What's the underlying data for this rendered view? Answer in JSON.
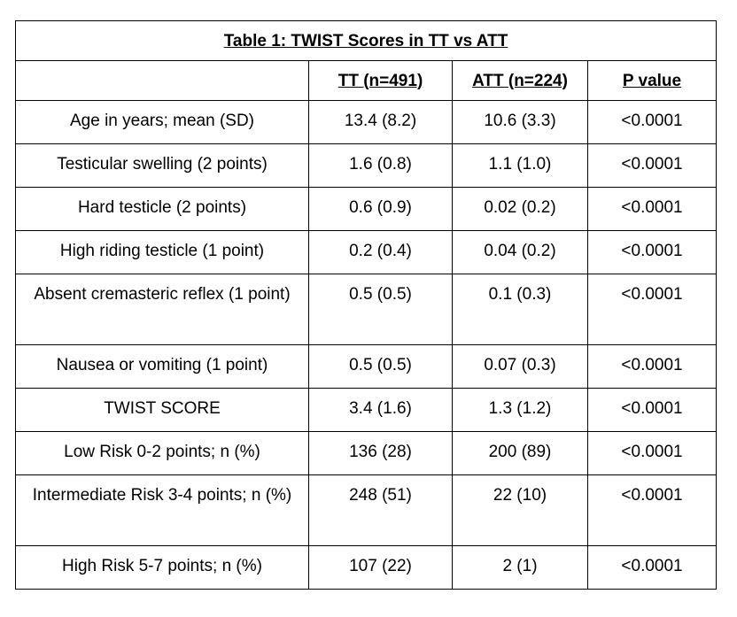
{
  "table": {
    "title": "Table 1: TWIST Scores in TT vs ATT",
    "headers": [
      "",
      "TT (n=491)",
      "ATT (n=224)",
      "P value"
    ],
    "rows": [
      {
        "label": "Age in years; mean (SD)",
        "tt": "13.4 (8.2)",
        "att": "10.6 (3.3)",
        "p": "<0.0001"
      },
      {
        "label": "Testicular swelling (2 points)",
        "tt": "1.6 (0.8)",
        "att": "1.1 (1.0)",
        "p": "<0.0001"
      },
      {
        "label": "Hard testicle (2 points)",
        "tt": "0.6 (0.9)",
        "att": "0.02 (0.2)",
        "p": "<0.0001"
      },
      {
        "label": "High riding testicle (1 point)",
        "tt": "0.2 (0.4)",
        "att": "0.04 (0.2)",
        "p": "<0.0001"
      },
      {
        "label": "Absent cremasteric reflex (1 point)",
        "tt": "0.5 (0.5)",
        "att": "0.1 (0.3)",
        "p": "<0.0001"
      },
      {
        "label": "Nausea or vomiting (1 point)",
        "tt": "0.5 (0.5)",
        "att": "0.07 (0.3)",
        "p": "<0.0001"
      },
      {
        "label": "TWIST SCORE",
        "tt": "3.4 (1.6)",
        "att": "1.3 (1.2)",
        "p": "<0.0001"
      },
      {
        "label": "Low Risk 0-2 points; n (%)",
        "tt": "136 (28)",
        "att": "200 (89)",
        "p": "<0.0001"
      },
      {
        "label": "Intermediate Risk 3-4 points; n (%)",
        "tt": "248 (51)",
        "att": "22 (10)",
        "p": "<0.0001"
      },
      {
        "label": "High Risk 5-7 points; n (%)",
        "tt": "107 (22)",
        "att": "2 (1)",
        "p": "<0.0001"
      }
    ]
  }
}
